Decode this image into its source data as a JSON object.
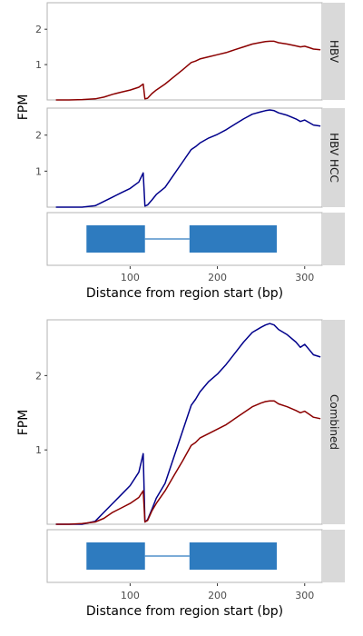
{
  "chart_data": [
    {
      "type": "line",
      "title": "",
      "xlabel": "Distance from region start (bp)",
      "ylabel": "FPM",
      "xlim": [
        5,
        320
      ],
      "x_ticks": [
        "100",
        "200",
        "300"
      ],
      "grid": false,
      "facets": [
        {
          "label": "HBV",
          "ylim": [
            0,
            2.75
          ],
          "y_ticks": [
            "1",
            "2"
          ],
          "series": [
            {
              "color": "#8b0000",
              "x": [
                15,
                30,
                45,
                60,
                70,
                80,
                90,
                100,
                110,
                115,
                117,
                120,
                125,
                130,
                140,
                150,
                160,
                170,
                175,
                180,
                190,
                200,
                210,
                220,
                230,
                240,
                250,
                255,
                260,
                265,
                270,
                280,
                290,
                295,
                300,
                305,
                310,
                318
              ],
              "y": [
                0.0,
                0.0,
                0.01,
                0.03,
                0.08,
                0.16,
                0.22,
                0.28,
                0.36,
                0.45,
                0.03,
                0.05,
                0.18,
                0.28,
                0.45,
                0.65,
                0.85,
                1.06,
                1.1,
                1.16,
                1.22,
                1.28,
                1.34,
                1.42,
                1.5,
                1.58,
                1.63,
                1.65,
                1.66,
                1.66,
                1.62,
                1.58,
                1.53,
                1.5,
                1.52,
                1.48,
                1.44,
                1.42
              ]
            }
          ]
        },
        {
          "label": "HBV HCC",
          "ylim": [
            0,
            2.75
          ],
          "y_ticks": [
            "1",
            "2"
          ],
          "series": [
            {
              "color": "#00008b",
              "x": [
                15,
                30,
                45,
                60,
                70,
                80,
                90,
                100,
                110,
                115,
                117,
                120,
                125,
                130,
                140,
                150,
                160,
                170,
                175,
                180,
                190,
                200,
                210,
                220,
                230,
                240,
                250,
                255,
                260,
                265,
                270,
                280,
                290,
                295,
                300,
                305,
                310,
                318
              ],
              "y": [
                0.0,
                0.0,
                0.0,
                0.04,
                0.16,
                0.28,
                0.4,
                0.52,
                0.7,
                0.95,
                0.03,
                0.06,
                0.2,
                0.35,
                0.55,
                0.9,
                1.25,
                1.6,
                1.68,
                1.78,
                1.92,
                2.02,
                2.15,
                2.3,
                2.45,
                2.58,
                2.65,
                2.68,
                2.7,
                2.68,
                2.62,
                2.55,
                2.45,
                2.38,
                2.42,
                2.35,
                2.28,
                2.25
              ]
            }
          ]
        }
      ],
      "gene_model": {
        "exons": [
          [
            50,
            117
          ],
          [
            168,
            268
          ]
        ],
        "intron": [
          117,
          168
        ],
        "color": "#2e7bbf"
      }
    },
    {
      "type": "line",
      "title": "",
      "xlabel": "Distance from region start (bp)",
      "ylabel": "FPM",
      "xlim": [
        5,
        320
      ],
      "x_ticks": [
        "100",
        "200",
        "300"
      ],
      "grid": false,
      "facets": [
        {
          "label": "Combined",
          "ylim": [
            0,
            2.75
          ],
          "y_ticks": [
            "1",
            "2"
          ],
          "series": [
            {
              "color": "#00008b",
              "x": [
                15,
                30,
                45,
                60,
                70,
                80,
                90,
                100,
                110,
                115,
                117,
                120,
                125,
                130,
                140,
                150,
                160,
                170,
                175,
                180,
                190,
                200,
                210,
                220,
                230,
                240,
                250,
                255,
                260,
                265,
                270,
                280,
                290,
                295,
                300,
                305,
                310,
                318
              ],
              "y": [
                0.0,
                0.0,
                0.0,
                0.04,
                0.16,
                0.28,
                0.4,
                0.52,
                0.7,
                0.95,
                0.03,
                0.06,
                0.2,
                0.35,
                0.55,
                0.9,
                1.25,
                1.6,
                1.68,
                1.78,
                1.92,
                2.02,
                2.15,
                2.3,
                2.45,
                2.58,
                2.65,
                2.68,
                2.7,
                2.68,
                2.62,
                2.55,
                2.45,
                2.38,
                2.42,
                2.35,
                2.28,
                2.25
              ]
            },
            {
              "color": "#8b0000",
              "x": [
                15,
                30,
                45,
                60,
                70,
                80,
                90,
                100,
                110,
                115,
                117,
                120,
                125,
                130,
                140,
                150,
                160,
                170,
                175,
                180,
                190,
                200,
                210,
                220,
                230,
                240,
                250,
                255,
                260,
                265,
                270,
                280,
                290,
                295,
                300,
                305,
                310,
                318
              ],
              "y": [
                0.0,
                0.0,
                0.01,
                0.03,
                0.08,
                0.16,
                0.22,
                0.28,
                0.36,
                0.45,
                0.03,
                0.05,
                0.18,
                0.28,
                0.45,
                0.65,
                0.85,
                1.06,
                1.1,
                1.16,
                1.22,
                1.28,
                1.34,
                1.42,
                1.5,
                1.58,
                1.63,
                1.65,
                1.66,
                1.66,
                1.62,
                1.58,
                1.53,
                1.5,
                1.52,
                1.48,
                1.44,
                1.42
              ]
            }
          ]
        }
      ],
      "gene_model": {
        "exons": [
          [
            50,
            117
          ],
          [
            168,
            268
          ]
        ],
        "intron": [
          117,
          168
        ],
        "color": "#2e7bbf"
      }
    }
  ]
}
